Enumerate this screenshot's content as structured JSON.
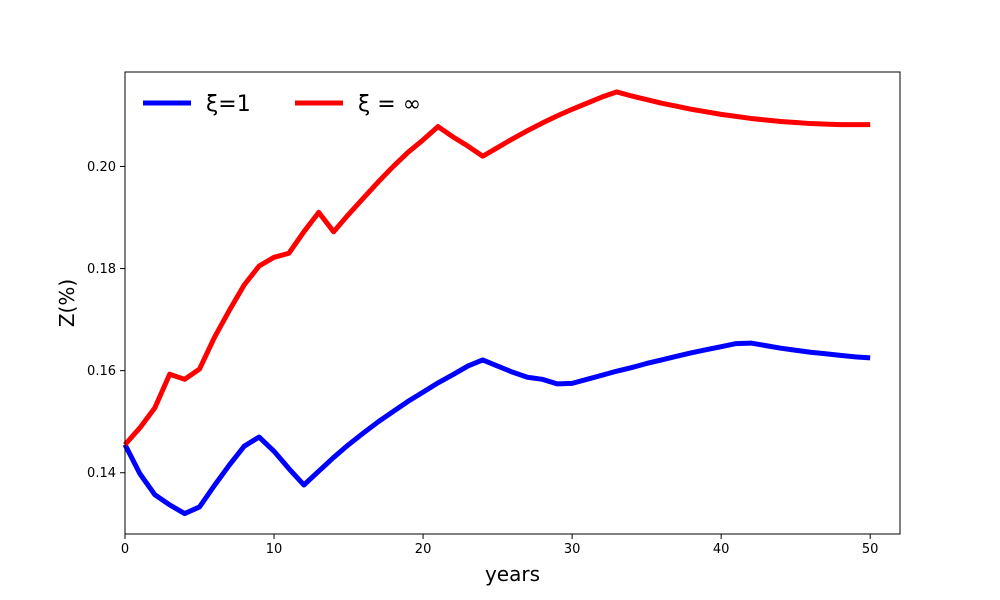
{
  "chart_data": {
    "type": "line",
    "title": "",
    "xlabel": "years",
    "ylabel": "Z(%)",
    "xlim": [
      0,
      52
    ],
    "ylim": [
      0.128,
      0.2185
    ],
    "xticks": [
      0,
      10,
      20,
      30,
      40,
      50
    ],
    "xtick_labels": [
      "0",
      "10",
      "20",
      "30",
      "40",
      "50"
    ],
    "yticks": [
      0.14,
      0.16,
      0.18,
      0.2
    ],
    "ytick_labels": [
      "0.14",
      "0.16",
      "0.18",
      "0.20"
    ],
    "grid": false,
    "legend": {
      "placement": "top-left",
      "columns": 2
    },
    "series": [
      {
        "name": "ξ=1",
        "color": "#0000ff",
        "x": [
          0,
          1,
          2,
          3,
          4,
          5,
          6,
          7,
          8,
          9,
          10,
          11,
          12,
          13,
          14,
          15,
          16,
          17,
          18,
          19,
          20,
          21,
          22,
          23,
          24,
          25,
          26,
          27,
          28,
          29,
          30,
          31,
          32,
          33,
          34,
          35,
          36,
          37,
          38,
          39,
          40,
          41,
          42,
          43,
          44,
          45,
          46,
          47,
          48,
          49,
          50
        ],
        "y": [
          0.1455,
          0.1398,
          0.1357,
          0.1337,
          0.132,
          0.1333,
          0.1375,
          0.1415,
          0.1452,
          0.147,
          0.1442,
          0.1408,
          0.1376,
          0.1403,
          0.143,
          0.1455,
          0.1478,
          0.15,
          0.152,
          0.154,
          0.1558,
          0.1576,
          0.1592,
          0.1609,
          0.1621,
          0.1609,
          0.1597,
          0.1587,
          0.1583,
          0.1574,
          0.1575,
          0.1583,
          0.1591,
          0.1599,
          0.1606,
          0.1614,
          0.1621,
          0.1628,
          0.1635,
          0.1641,
          0.1647,
          0.1653,
          0.1654,
          0.1649,
          0.1644,
          0.164,
          0.1636,
          0.1633,
          0.163,
          0.1627,
          0.1625
        ]
      },
      {
        "name": "ξ = ∞",
        "color": "#ff0000",
        "x": [
          0,
          1,
          2,
          3,
          4,
          5,
          6,
          7,
          8,
          9,
          10,
          11,
          12,
          13,
          14,
          15,
          16,
          17,
          18,
          19,
          20,
          21,
          22,
          23,
          24,
          25,
          26,
          27,
          28,
          29,
          30,
          31,
          32,
          33,
          34,
          35,
          36,
          37,
          38,
          39,
          40,
          41,
          42,
          43,
          44,
          45,
          46,
          47,
          48,
          49,
          50
        ],
        "y": [
          0.1455,
          0.1488,
          0.1527,
          0.1593,
          0.1583,
          0.1603,
          0.1665,
          0.1718,
          0.1768,
          0.1805,
          0.1822,
          0.183,
          0.1872,
          0.191,
          0.1872,
          0.1906,
          0.1938,
          0.197,
          0.2,
          0.2028,
          0.2052,
          0.2078,
          0.2058,
          0.204,
          0.202,
          0.2037,
          0.2054,
          0.207,
          0.2085,
          0.2099,
          0.2112,
          0.2124,
          0.2136,
          0.2146,
          0.2138,
          0.2131,
          0.2124,
          0.2118,
          0.2112,
          0.2107,
          0.2102,
          0.2098,
          0.2094,
          0.2091,
          0.2088,
          0.2086,
          0.2084,
          0.2083,
          0.2082,
          0.2082,
          0.2082
        ]
      }
    ]
  }
}
